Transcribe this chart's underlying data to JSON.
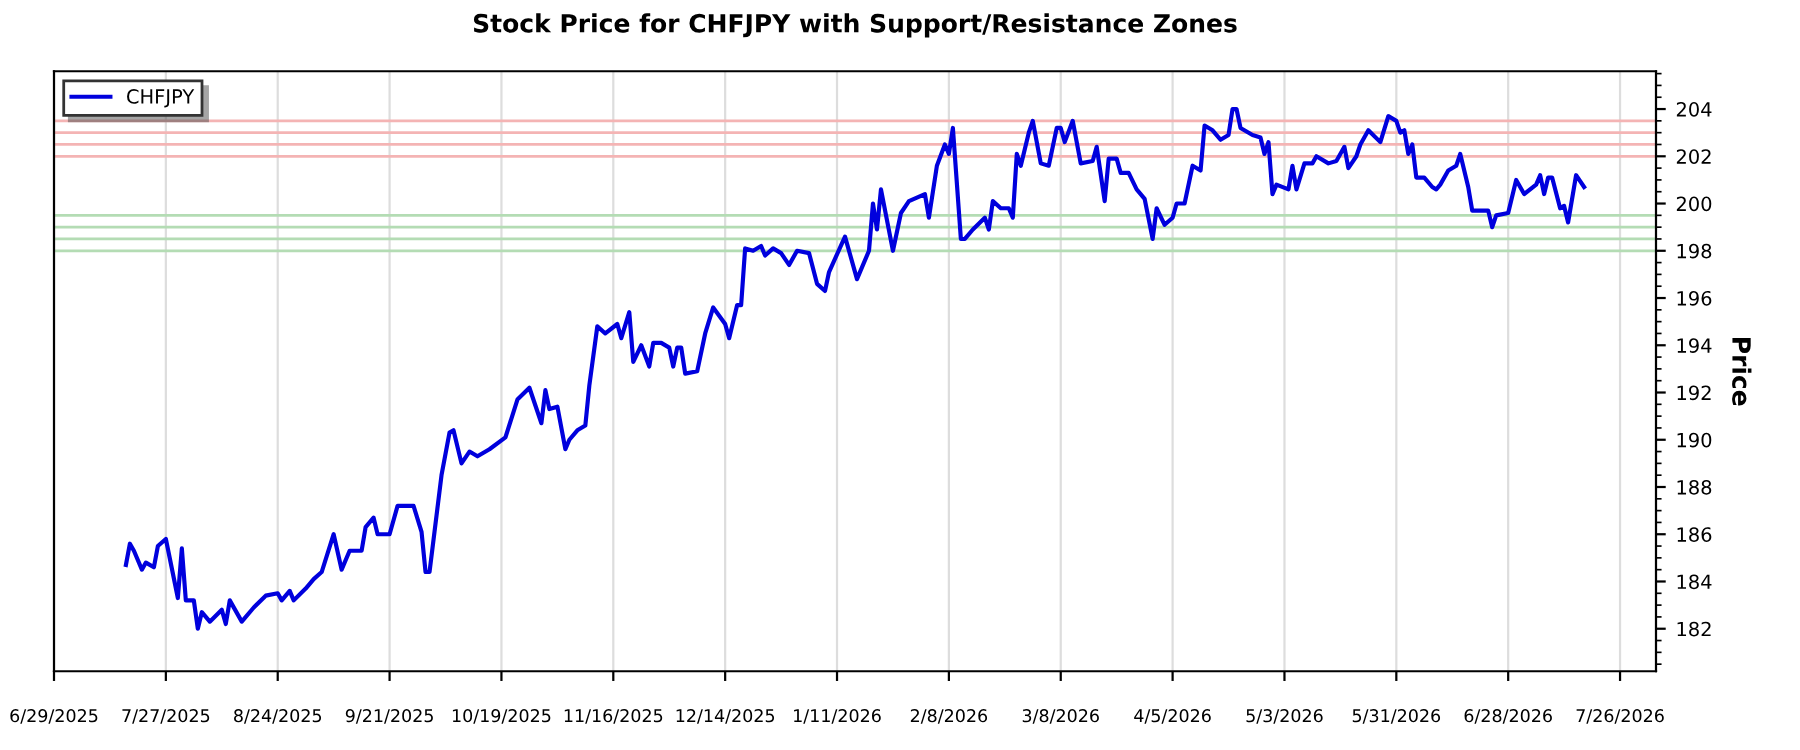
{
  "chart_data": {
    "type": "line",
    "title": "Stock Price for CHFJPY with Support/Resistance Zones",
    "ylabel": "Price",
    "x": [
      "2025-07-17",
      "2025-07-18",
      "2025-07-19",
      "2025-07-21",
      "2025-07-22",
      "2025-07-24",
      "2025-07-25",
      "2025-07-27",
      "2025-07-30",
      "2025-07-31",
      "2025-08-01",
      "2025-08-03",
      "2025-08-04",
      "2025-08-05",
      "2025-08-07",
      "2025-08-10",
      "2025-08-11",
      "2025-08-12",
      "2025-08-15",
      "2025-08-18",
      "2025-08-21",
      "2025-08-24",
      "2025-08-25",
      "2025-08-27",
      "2025-08-28",
      "2025-08-31",
      "2025-09-02",
      "2025-09-04",
      "2025-09-07",
      "2025-09-09",
      "2025-09-11",
      "2025-09-14",
      "2025-09-15",
      "2025-09-17",
      "2025-09-18",
      "2025-09-21",
      "2025-09-23",
      "2025-09-27",
      "2025-09-29",
      "2025-09-30",
      "2025-10-01",
      "2025-10-04",
      "2025-10-06",
      "2025-10-07",
      "2025-10-09",
      "2025-10-11",
      "2025-10-13",
      "2025-10-16",
      "2025-10-20",
      "2025-10-23",
      "2025-10-26",
      "2025-10-29",
      "2025-10-30",
      "2025-10-31",
      "2025-11-02",
      "2025-11-04",
      "2025-11-05",
      "2025-11-07",
      "2025-11-09",
      "2025-11-10",
      "2025-11-12",
      "2025-11-14",
      "2025-11-17",
      "2025-11-18",
      "2025-11-20",
      "2025-11-21",
      "2025-11-23",
      "2025-11-25",
      "2025-11-26",
      "2025-11-28",
      "2025-11-30",
      "2025-12-01",
      "2025-12-02",
      "2025-12-03",
      "2025-12-04",
      "2025-12-07",
      "2025-12-09",
      "2025-12-11",
      "2025-12-14",
      "2025-12-15",
      "2025-12-17",
      "2025-12-18",
      "2025-12-19",
      "2025-12-21",
      "2025-12-23",
      "2025-12-24",
      "2025-12-26",
      "2025-12-28",
      "2025-12-30",
      "2026-01-01",
      "2026-01-04",
      "2026-01-06",
      "2026-01-08",
      "2026-01-09",
      "2026-01-13",
      "2026-01-16",
      "2026-01-19",
      "2026-01-20",
      "2026-01-21",
      "2026-01-22",
      "2026-01-25",
      "2026-01-27",
      "2026-01-29",
      "2026-02-02",
      "2026-02-03",
      "2026-02-05",
      "2026-02-07",
      "2026-02-08",
      "2026-02-09",
      "2026-02-11",
      "2026-02-12",
      "2026-02-14",
      "2026-02-17",
      "2026-02-18",
      "2026-02-19",
      "2026-02-21",
      "2026-02-23",
      "2026-02-24",
      "2026-02-25",
      "2026-02-26",
      "2026-02-28",
      "2026-03-01",
      "2026-03-03",
      "2026-03-05",
      "2026-03-07",
      "2026-03-08",
      "2026-03-09",
      "2026-03-11",
      "2026-03-13",
      "2026-03-16",
      "2026-03-17",
      "2026-03-19",
      "2026-03-20",
      "2026-03-22",
      "2026-03-23",
      "2026-03-25",
      "2026-03-27",
      "2026-03-29",
      "2026-03-31",
      "2026-04-01",
      "2026-04-03",
      "2026-04-05",
      "2026-04-06",
      "2026-04-08",
      "2026-04-10",
      "2026-04-12",
      "2026-04-13",
      "2026-04-15",
      "2026-04-17",
      "2026-04-19",
      "2026-04-20",
      "2026-04-21",
      "2026-04-22",
      "2026-04-25",
      "2026-04-27",
      "2026-04-28",
      "2026-04-29",
      "2026-04-30",
      "2026-05-01",
      "2026-05-04",
      "2026-05-05",
      "2026-05-06",
      "2026-05-08",
      "2026-05-10",
      "2026-05-11",
      "2026-05-14",
      "2026-05-16",
      "2026-05-18",
      "2026-05-19",
      "2026-05-21",
      "2026-05-22",
      "2026-05-24",
      "2026-05-27",
      "2026-05-29",
      "2026-05-31",
      "2026-06-01",
      "2026-06-02",
      "2026-06-03",
      "2026-06-04",
      "2026-06-05",
      "2026-06-07",
      "2026-06-09",
      "2026-06-10",
      "2026-06-11",
      "2026-06-13",
      "2026-06-15",
      "2026-06-16",
      "2026-06-18",
      "2026-06-19",
      "2026-06-23",
      "2026-06-24",
      "2026-06-25",
      "2026-06-28",
      "2026-06-30",
      "2026-07-02",
      "2026-07-05",
      "2026-07-06",
      "2026-07-07",
      "2026-07-08",
      "2026-07-09",
      "2026-07-11",
      "2026-07-12",
      "2026-07-13",
      "2026-07-15",
      "2026-07-17"
    ],
    "series": [
      {
        "name": "CHFJPY",
        "color": "#0000dd",
        "values": [
          184.7,
          185.6,
          185.3,
          184.5,
          184.8,
          184.6,
          185.5,
          185.8,
          183.3,
          185.4,
          183.2,
          183.2,
          182.0,
          182.7,
          182.3,
          182.8,
          182.2,
          183.2,
          182.3,
          182.9,
          183.4,
          183.5,
          183.2,
          183.6,
          183.2,
          183.7,
          184.1,
          184.4,
          186.0,
          184.5,
          185.3,
          185.3,
          186.3,
          186.7,
          186.0,
          186.0,
          187.2,
          187.2,
          186.1,
          184.4,
          184.4,
          188.5,
          190.3,
          190.4,
          189.0,
          189.5,
          189.3,
          189.6,
          190.1,
          191.7,
          192.2,
          190.7,
          192.1,
          191.3,
          191.4,
          189.6,
          190.0,
          190.4,
          190.6,
          192.3,
          194.8,
          194.5,
          194.9,
          194.3,
          195.4,
          193.3,
          194.0,
          193.1,
          194.1,
          194.1,
          193.9,
          193.1,
          193.9,
          193.9,
          192.8,
          192.9,
          194.5,
          195.6,
          194.9,
          194.3,
          195.7,
          195.7,
          198.1,
          198.0,
          198.2,
          197.8,
          198.1,
          197.9,
          197.4,
          198.0,
          197.9,
          196.6,
          196.3,
          197.1,
          198.6,
          196.8,
          198.0,
          200.0,
          198.9,
          200.6,
          198.0,
          199.6,
          200.1,
          200.4,
          199.4,
          201.6,
          202.5,
          202.1,
          203.2,
          198.5,
          198.5,
          198.9,
          199.4,
          198.9,
          200.1,
          199.8,
          199.8,
          199.4,
          202.1,
          201.6,
          203.0,
          203.5,
          201.7,
          201.6,
          203.2,
          203.2,
          202.6,
          203.5,
          201.7,
          201.8,
          202.4,
          200.1,
          201.9,
          201.9,
          201.3,
          201.3,
          200.6,
          200.2,
          198.5,
          199.8,
          199.1,
          199.4,
          200.0,
          200.0,
          201.6,
          201.4,
          203.3,
          203.1,
          202.7,
          202.9,
          204.0,
          204.0,
          203.2,
          202.9,
          202.8,
          202.1,
          202.6,
          200.4,
          200.8,
          200.6,
          201.6,
          200.6,
          201.7,
          201.7,
          202.0,
          201.7,
          201.8,
          202.4,
          201.5,
          202.0,
          202.5,
          203.1,
          202.6,
          203.7,
          203.5,
          203.0,
          203.1,
          202.1,
          202.5,
          201.1,
          201.1,
          200.7,
          200.6,
          200.8,
          201.4,
          201.6,
          202.1,
          200.7,
          199.7,
          199.7,
          199.0,
          199.5,
          199.6,
          201.0,
          200.4,
          200.8,
          201.2,
          200.4,
          201.1,
          201.1,
          199.8,
          199.9,
          199.2,
          201.2,
          200.7
        ]
      }
    ],
    "xlim": [
      "2025-06-29",
      "2026-08-04"
    ],
    "xticks": [
      {
        "value": "2025-06-29",
        "label": "6/29/2025"
      },
      {
        "value": "2025-07-27",
        "label": "7/27/2025"
      },
      {
        "value": "2025-08-24",
        "label": "8/24/2025"
      },
      {
        "value": "2025-09-21",
        "label": "9/21/2025"
      },
      {
        "value": "2025-10-19",
        "label": "10/19/2025"
      },
      {
        "value": "2025-11-16",
        "label": "11/16/2025"
      },
      {
        "value": "2025-12-14",
        "label": "12/14/2025"
      },
      {
        "value": "2026-01-11",
        "label": "1/11/2026"
      },
      {
        "value": "2026-02-08",
        "label": "2/8/2026"
      },
      {
        "value": "2026-03-08",
        "label": "3/8/2026"
      },
      {
        "value": "2026-04-05",
        "label": "4/5/2026"
      },
      {
        "value": "2026-05-03",
        "label": "5/3/2026"
      },
      {
        "value": "2026-05-31",
        "label": "5/31/2026"
      },
      {
        "value": "2026-06-28",
        "label": "6/28/2026"
      },
      {
        "value": "2026-07-26",
        "label": "7/26/2026"
      }
    ],
    "ylim": [
      180.2,
      205.6
    ],
    "yticks": [
      182,
      184,
      186,
      188,
      190,
      192,
      194,
      196,
      198,
      200,
      202,
      204
    ],
    "ref_lines": [
      {
        "axis": "y",
        "value": 202,
        "color": "#f4b4b4"
      },
      {
        "axis": "y",
        "value": 202.5,
        "color": "#f4b4b4"
      },
      {
        "axis": "y",
        "value": 203,
        "color": "#f4b4b4"
      },
      {
        "axis": "y",
        "value": 203.5,
        "color": "#f4b4b4"
      },
      {
        "axis": "y",
        "value": 198,
        "color": "#b4dcb4"
      },
      {
        "axis": "y",
        "value": 198.5,
        "color": "#b4dcb4"
      },
      {
        "axis": "y",
        "value": 199,
        "color": "#b4dcb4"
      },
      {
        "axis": "y",
        "value": 199.5,
        "color": "#b4dcb4"
      }
    ],
    "grid": "x",
    "legend": "top left",
    "marker": "none",
    "line_style": "solid"
  }
}
